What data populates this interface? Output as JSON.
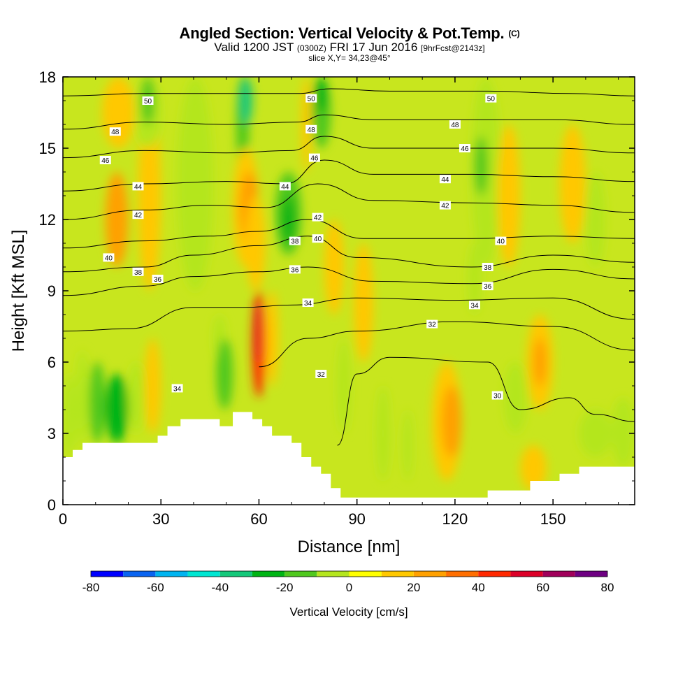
{
  "header": {
    "title": "Angled Section: Vertical Velocity & Pot.Temp.",
    "title_unit": "(C)",
    "valid_prefix": "Valid 1200 JST",
    "valid_utc": "(0300Z)",
    "valid_date": "FRI 17 Jun 2016",
    "forecast": "[9hrFcst@2143z]",
    "slice": "slice X,Y= 34,23@45°"
  },
  "chart_data": {
    "type": "heatmap",
    "xlabel": "Distance [nm]",
    "ylabel": "Height [Kft MSL]",
    "xlim": [
      0,
      175
    ],
    "ylim": [
      0,
      18
    ],
    "x_ticks": [
      0,
      30,
      60,
      90,
      120,
      150
    ],
    "y_ticks": [
      0,
      3,
      6,
      9,
      12,
      15,
      18
    ],
    "colorbar": {
      "label": "Vertical Velocity [cm/s]",
      "levels": [
        -80,
        -70,
        -60,
        -50,
        -40,
        -30,
        -20,
        -10,
        0,
        10,
        20,
        30,
        40,
        50,
        60,
        70,
        80
      ],
      "tick_labels": [
        "-80",
        "-60",
        "-40",
        "-20",
        "0",
        "20",
        "40",
        "60",
        "80"
      ],
      "colors": [
        "#0000ff",
        "#0a64f0",
        "#00b4f0",
        "#00e6d2",
        "#14c87a",
        "#00b414",
        "#50c81e",
        "#b4e61e",
        "#ffff00",
        "#ffc800",
        "#ffa000",
        "#ff6e00",
        "#ff2800",
        "#dc0028",
        "#a0005a",
        "#6e0082"
      ]
    },
    "terrain_kft": [
      [
        0,
        2.0
      ],
      [
        3,
        2.0
      ],
      [
        3,
        2.3
      ],
      [
        6,
        2.3
      ],
      [
        6,
        2.6
      ],
      [
        29,
        2.6
      ],
      [
        29,
        2.9
      ],
      [
        32,
        2.9
      ],
      [
        32,
        3.3
      ],
      [
        36,
        3.3
      ],
      [
        36,
        3.6
      ],
      [
        48,
        3.6
      ],
      [
        48,
        3.3
      ],
      [
        52,
        3.3
      ],
      [
        52,
        3.9
      ],
      [
        58,
        3.9
      ],
      [
        58,
        3.6
      ],
      [
        61,
        3.6
      ],
      [
        61,
        3.3
      ],
      [
        64,
        3.3
      ],
      [
        64,
        2.9
      ],
      [
        70,
        2.9
      ],
      [
        70,
        2.6
      ],
      [
        73,
        2.6
      ],
      [
        73,
        2.0
      ],
      [
        76,
        2.0
      ],
      [
        76,
        1.6
      ],
      [
        79,
        1.6
      ],
      [
        79,
        1.3
      ],
      [
        82,
        1.3
      ],
      [
        82,
        0.7
      ],
      [
        85,
        0.7
      ],
      [
        85,
        0.3
      ],
      [
        130,
        0.3
      ],
      [
        130,
        0.6
      ],
      [
        143,
        0.6
      ],
      [
        143,
        1.0
      ],
      [
        152,
        1.0
      ],
      [
        152,
        1.3
      ],
      [
        158,
        1.3
      ],
      [
        158,
        1.6
      ],
      [
        175,
        1.6
      ]
    ],
    "velocity_cells": [
      {
        "x": [
          0,
          4
        ],
        "y": [
          2,
          5.5
        ],
        "w": -10
      },
      {
        "x": [
          4,
          8
        ],
        "y": [
          2.5,
          6.5
        ],
        "w": -10
      },
      {
        "x": [
          8,
          13
        ],
        "y": [
          2.6,
          6
        ],
        "w": -20
      },
      {
        "x": [
          13,
          20
        ],
        "y": [
          2.6,
          5.5
        ],
        "w": -30
      },
      {
        "x": [
          20,
          25
        ],
        "y": [
          3,
          6
        ],
        "w": -10
      },
      {
        "x": [
          23,
          30
        ],
        "y": [
          9,
          17
        ],
        "w": 10
      },
      {
        "x": [
          12,
          22
        ],
        "y": [
          15,
          18
        ],
        "w": 10
      },
      {
        "x": [
          13,
          20
        ],
        "y": [
          10,
          14
        ],
        "w": 20
      },
      {
        "x": [
          22,
          30
        ],
        "y": [
          15,
          18
        ],
        "w": -10
      },
      {
        "x": [
          24,
          28
        ],
        "y": [
          16,
          18
        ],
        "w": -20
      },
      {
        "x": [
          25,
          30
        ],
        "y": [
          3,
          7
        ],
        "w": 10
      },
      {
        "x": [
          35,
          46
        ],
        "y": [
          9,
          18
        ],
        "w": -10
      },
      {
        "x": [
          46,
          50
        ],
        "y": [
          6,
          8
        ],
        "w": -10
      },
      {
        "x": [
          47,
          52
        ],
        "y": [
          4,
          7
        ],
        "w": -20
      },
      {
        "x": [
          53,
          57
        ],
        "y": [
          14,
          18
        ],
        "w": -20
      },
      {
        "x": [
          54,
          58
        ],
        "y": [
          16,
          18
        ],
        "w": -40
      },
      {
        "x": [
          52,
          60
        ],
        "y": [
          10,
          15
        ],
        "w": 10
      },
      {
        "x": [
          54,
          60
        ],
        "y": [
          11,
          14
        ],
        "w": 20
      },
      {
        "x": [
          56,
          62
        ],
        "y": [
          9,
          13
        ],
        "w": 10
      },
      {
        "x": [
          58,
          62
        ],
        "y": [
          4.5,
          9
        ],
        "w": 40
      },
      {
        "x": [
          59,
          61
        ],
        "y": [
          6,
          8.5
        ],
        "w": 50
      },
      {
        "x": [
          62,
          66
        ],
        "y": [
          5,
          9
        ],
        "w": 10
      },
      {
        "x": [
          65,
          73
        ],
        "y": [
          10.5,
          14
        ],
        "w": -20
      },
      {
        "x": [
          67,
          71
        ],
        "y": [
          11,
          13
        ],
        "w": -30
      },
      {
        "x": [
          73,
          76
        ],
        "y": [
          14,
          18
        ],
        "w": 10
      },
      {
        "x": [
          76,
          82
        ],
        "y": [
          15,
          18
        ],
        "w": -20
      },
      {
        "x": [
          77,
          81
        ],
        "y": [
          16.5,
          18
        ],
        "w": -30
      },
      {
        "x": [
          80,
          86
        ],
        "y": [
          8,
          12
        ],
        "w": 10
      },
      {
        "x": [
          84,
          88
        ],
        "y": [
          3,
          7
        ],
        "w": -10
      },
      {
        "x": [
          89,
          95
        ],
        "y": [
          6,
          11
        ],
        "w": 10
      },
      {
        "x": [
          96,
          100
        ],
        "y": [
          1,
          5
        ],
        "w": -10
      },
      {
        "x": [
          104,
          107
        ],
        "y": [
          1,
          4
        ],
        "w": -10
      },
      {
        "x": [
          113,
          122
        ],
        "y": [
          1,
          6
        ],
        "w": 10
      },
      {
        "x": [
          116,
          122
        ],
        "y": [
          2,
          5
        ],
        "w": 20
      },
      {
        "x": [
          124,
          128
        ],
        "y": [
          8,
          11
        ],
        "w": -10
      },
      {
        "x": [
          125,
          134
        ],
        "y": [
          10,
          18
        ],
        "w": -10
      },
      {
        "x": [
          126,
          130
        ],
        "y": [
          13,
          15.5
        ],
        "w": -20
      },
      {
        "x": [
          133,
          140
        ],
        "y": [
          10,
          16
        ],
        "w": 10
      },
      {
        "x": [
          135,
          142
        ],
        "y": [
          3,
          6
        ],
        "w": -10
      },
      {
        "x": [
          142,
          150
        ],
        "y": [
          4,
          8
        ],
        "w": 10
      },
      {
        "x": [
          144,
          148
        ],
        "y": [
          5,
          7
        ],
        "w": 20
      },
      {
        "x": [
          152,
          160
        ],
        "y": [
          11,
          16
        ],
        "w": 10
      },
      {
        "x": [
          160,
          166
        ],
        "y": [
          10,
          14
        ],
        "w": -10
      },
      {
        "x": [
          158,
          168
        ],
        "y": [
          2,
          4
        ],
        "w": -10
      },
      {
        "x": [
          168,
          175
        ],
        "y": [
          1.6,
          4.5
        ],
        "w": -10
      },
      {
        "x": [
          140,
          148
        ],
        "y": [
          0.6,
          2.5
        ],
        "w": 10
      }
    ],
    "theta_contours": [
      {
        "level": 30,
        "label": "30",
        "pts": [
          [
            84,
            2.5
          ],
          [
            90,
            5.5
          ],
          [
            100,
            6.2
          ],
          [
            130,
            6.0
          ],
          [
            140,
            4.0
          ],
          [
            155,
            4.5
          ],
          [
            163,
            3.8
          ],
          [
            175,
            3.5
          ]
        ]
      },
      {
        "level": 32,
        "label": "32",
        "pts": [
          [
            60,
            5.8
          ],
          [
            75,
            7.0
          ],
          [
            90,
            7.3
          ],
          [
            120,
            7.7
          ],
          [
            150,
            7.5
          ],
          [
            175,
            6.5
          ]
        ]
      },
      {
        "level": 34,
        "label": "34",
        "pts": [
          [
            0,
            7.3
          ],
          [
            20,
            7.4
          ],
          [
            40,
            8.3
          ],
          [
            55,
            8.3
          ],
          [
            70,
            8.4
          ],
          [
            90,
            8.7
          ],
          [
            120,
            8.6
          ],
          [
            150,
            8.7
          ],
          [
            175,
            7.8
          ]
        ]
      },
      {
        "level": 36,
        "label": "36",
        "pts": [
          [
            0,
            8.8
          ],
          [
            25,
            9.2
          ],
          [
            40,
            9.6
          ],
          [
            60,
            9.8
          ],
          [
            75,
            10.0
          ],
          [
            95,
            9.4
          ],
          [
            125,
            9.3
          ],
          [
            150,
            9.9
          ],
          [
            175,
            9.5
          ]
        ]
      },
      {
        "level": 38,
        "label": "38",
        "pts": [
          [
            0,
            9.8
          ],
          [
            25,
            10.0
          ],
          [
            40,
            10.5
          ],
          [
            60,
            10.9
          ],
          [
            75,
            11.3
          ],
          [
            90,
            10.4
          ],
          [
            125,
            10.0
          ],
          [
            150,
            10.5
          ],
          [
            175,
            10.2
          ]
        ]
      },
      {
        "level": 40,
        "label": "40",
        "pts": [
          [
            0,
            10.8
          ],
          [
            25,
            11.1
          ],
          [
            45,
            11.3
          ],
          [
            60,
            11.5
          ],
          [
            75,
            12.0
          ],
          [
            92,
            11.2
          ],
          [
            125,
            11.2
          ],
          [
            150,
            11.3
          ],
          [
            175,
            11.2
          ]
        ]
      },
      {
        "level": 42,
        "label": "42",
        "pts": [
          [
            0,
            12.0
          ],
          [
            25,
            12.4
          ],
          [
            45,
            12.6
          ],
          [
            62,
            12.5
          ],
          [
            78,
            13.5
          ],
          [
            95,
            12.8
          ],
          [
            125,
            12.7
          ],
          [
            150,
            12.6
          ],
          [
            175,
            12.3
          ]
        ]
      },
      {
        "level": 44,
        "label": "44",
        "pts": [
          [
            0,
            13.2
          ],
          [
            25,
            13.5
          ],
          [
            50,
            13.6
          ],
          [
            68,
            13.5
          ],
          [
            80,
            14.5
          ],
          [
            95,
            13.9
          ],
          [
            125,
            13.9
          ],
          [
            150,
            13.8
          ],
          [
            175,
            13.6
          ]
        ]
      },
      {
        "level": 46,
        "label": "46",
        "pts": [
          [
            0,
            14.6
          ],
          [
            25,
            14.9
          ],
          [
            50,
            14.8
          ],
          [
            70,
            14.9
          ],
          [
            80,
            15.5
          ],
          [
            95,
            15.0
          ],
          [
            125,
            15.0
          ],
          [
            150,
            15.0
          ],
          [
            175,
            14.8
          ]
        ]
      },
      {
        "level": 48,
        "label": "48",
        "pts": [
          [
            0,
            15.8
          ],
          [
            25,
            16.1
          ],
          [
            50,
            16.0
          ],
          [
            72,
            16.1
          ],
          [
            80,
            16.4
          ],
          [
            95,
            16.2
          ],
          [
            125,
            16.2
          ],
          [
            150,
            16.2
          ],
          [
            175,
            16.0
          ]
        ]
      },
      {
        "level": 50,
        "label": "50",
        "pts": [
          [
            0,
            17.2
          ],
          [
            25,
            17.3
          ],
          [
            50,
            17.3
          ],
          [
            72,
            17.3
          ],
          [
            82,
            17.5
          ],
          [
            100,
            17.4
          ],
          [
            130,
            17.4
          ],
          [
            155,
            17.3
          ],
          [
            175,
            17.2
          ]
        ]
      }
    ],
    "contour_labels": [
      {
        "text": "50",
        "x": 26,
        "y": 17.0
      },
      {
        "text": "48",
        "x": 16,
        "y": 15.7
      },
      {
        "text": "46",
        "x": 13,
        "y": 14.5
      },
      {
        "text": "44",
        "x": 23,
        "y": 13.4
      },
      {
        "text": "42",
        "x": 23,
        "y": 12.2
      },
      {
        "text": "40",
        "x": 14,
        "y": 10.4
      },
      {
        "text": "38",
        "x": 23,
        "y": 9.8
      },
      {
        "text": "36",
        "x": 29,
        "y": 9.5
      },
      {
        "text": "34",
        "x": 35,
        "y": 4.9
      },
      {
        "text": "44",
        "x": 68,
        "y": 13.4
      },
      {
        "text": "42",
        "x": 78,
        "y": 12.1
      },
      {
        "text": "40",
        "x": 78,
        "y": 11.2
      },
      {
        "text": "38",
        "x": 71,
        "y": 11.1
      },
      {
        "text": "36",
        "x": 71,
        "y": 9.9
      },
      {
        "text": "34",
        "x": 75,
        "y": 8.5
      },
      {
        "text": "32",
        "x": 79,
        "y": 5.5
      },
      {
        "text": "46",
        "x": 77,
        "y": 14.6
      },
      {
        "text": "48",
        "x": 76,
        "y": 15.8
      },
      {
        "text": "50",
        "x": 76,
        "y": 17.1
      },
      {
        "text": "50",
        "x": 131,
        "y": 17.1
      },
      {
        "text": "48",
        "x": 120,
        "y": 16.0
      },
      {
        "text": "46",
        "x": 123,
        "y": 15.0
      },
      {
        "text": "44",
        "x": 117,
        "y": 13.7
      },
      {
        "text": "42",
        "x": 117,
        "y": 12.6
      },
      {
        "text": "40",
        "x": 134,
        "y": 11.1
      },
      {
        "text": "38",
        "x": 130,
        "y": 10.0
      },
      {
        "text": "36",
        "x": 130,
        "y": 9.2
      },
      {
        "text": "34",
        "x": 126,
        "y": 8.4
      },
      {
        "text": "32",
        "x": 113,
        "y": 7.6
      },
      {
        "text": "30",
        "x": 133,
        "y": 4.6
      }
    ]
  }
}
